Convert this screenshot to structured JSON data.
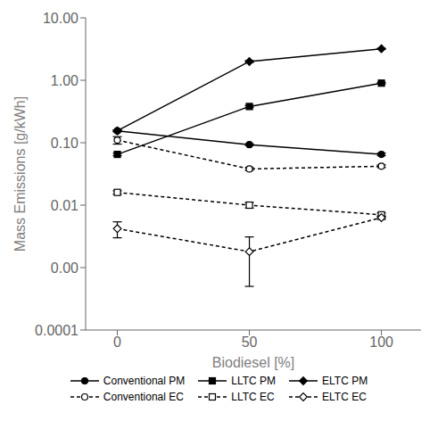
{
  "chart_data": {
    "type": "line",
    "xlabel": "Biodiesel [%]",
    "ylabel": "Mass Emissions [g/kWh]",
    "x": [
      0,
      50,
      100
    ],
    "xlim": [
      -12,
      115
    ],
    "xticks": [
      0,
      50,
      100
    ],
    "ylim": [
      0.0001,
      10.0
    ],
    "yticks": [
      0.0001,
      {
        "value": 0.001,
        "label": "0.00"
      },
      {
        "value": 0.01,
        "label": "0.01"
      },
      {
        "value": 0.1,
        "label": "0.10"
      },
      {
        "value": 1.0,
        "label": "1.00"
      },
      {
        "value": 10.0,
        "label": "10.00"
      }
    ],
    "log": "y",
    "grid": false,
    "legend": "bottom",
    "series": [
      {
        "name": "Conventional PM",
        "color": "#000000",
        "marker": "circle",
        "line_style": "solid",
        "values": [
          0.155,
          0.093,
          0.065
        ],
        "yerr": [
          0.005,
          0.003,
          0.003
        ]
      },
      {
        "name": "LLTC PM",
        "color": "#000000",
        "marker": "square",
        "line_style": "solid",
        "values": [
          0.065,
          0.38,
          0.9
        ],
        "yerr": [
          0.003,
          0.015,
          0.025
        ]
      },
      {
        "name": "ELTC PM",
        "color": "#000000",
        "marker": "diamond",
        "line_style": "solid",
        "values": [
          0.155,
          2.0,
          3.2
        ],
        "yerr": [
          0.005,
          0.07,
          0.05
        ]
      },
      {
        "name": "Conventional EC",
        "color": "#000000",
        "marker": "circle-open",
        "line_style": "dashed",
        "values": [
          0.11,
          0.038,
          0.042
        ],
        "yerr": [
          0.015,
          0.002,
          0.002
        ]
      },
      {
        "name": "LLTC EC",
        "color": "#000000",
        "marker": "square-open",
        "line_style": "dashed",
        "values": [
          0.016,
          0.01,
          0.007
        ],
        "yerr": [
          0.001,
          0.001,
          0.0005
        ]
      },
      {
        "name": "ELTC EC",
        "color": "#000000",
        "marker": "diamond-open",
        "line_style": "dashed",
        "values": [
          0.0042,
          0.0018,
          0.0063
        ],
        "yerr": [
          0.0012,
          0.0013,
          0.0004
        ]
      }
    ]
  }
}
